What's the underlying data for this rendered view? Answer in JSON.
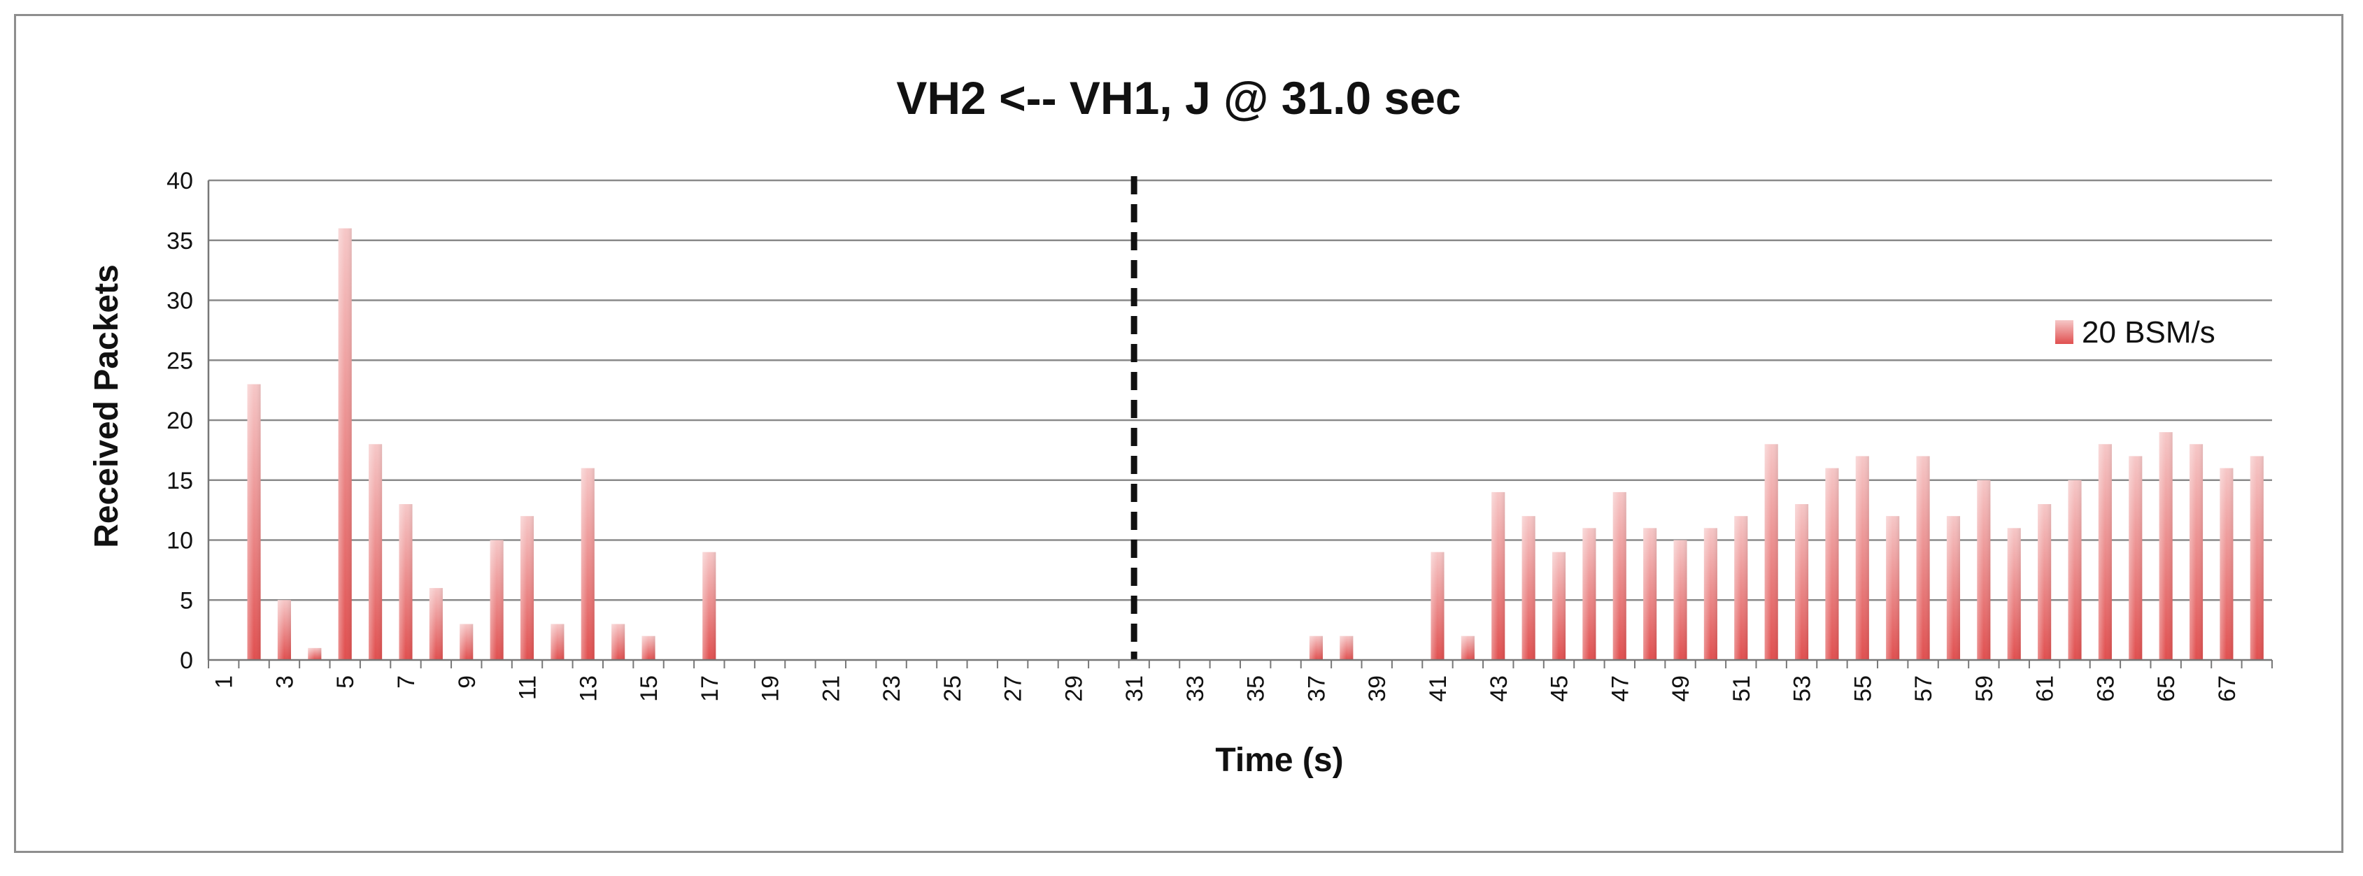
{
  "chart_data": {
    "type": "bar",
    "title": "VH2 <-- VH1, J @ 31.0 sec",
    "xlabel": "Time (s)",
    "ylabel": "Received Packets",
    "ylim": [
      0,
      40
    ],
    "yticks": [
      0,
      5,
      10,
      15,
      20,
      25,
      30,
      35,
      40
    ],
    "grid": true,
    "legend_position": "right",
    "categories": [
      1,
      2,
      3,
      4,
      5,
      6,
      7,
      8,
      9,
      10,
      11,
      12,
      13,
      14,
      15,
      16,
      17,
      18,
      19,
      20,
      21,
      22,
      23,
      24,
      25,
      26,
      27,
      28,
      29,
      30,
      31,
      32,
      33,
      34,
      35,
      36,
      37,
      38,
      39,
      40,
      41,
      42,
      43,
      44,
      45,
      46,
      47,
      48,
      49,
      50,
      51,
      52,
      53,
      54,
      55,
      56,
      57,
      58,
      59,
      60,
      61,
      62,
      63,
      64,
      65,
      66,
      67,
      68
    ],
    "x_tick_labels": [
      "1",
      "3",
      "5",
      "7",
      "9",
      "11",
      "13",
      "15",
      "17",
      "19",
      "21",
      "23",
      "25",
      "27",
      "29",
      "31",
      "33",
      "35",
      "37",
      "39",
      "41",
      "43",
      "45",
      "47",
      "49",
      "51",
      "53",
      "55",
      "57",
      "59",
      "61",
      "63",
      "65",
      "67"
    ],
    "series": [
      {
        "name": "20 BSM/s",
        "color": "#e25f5f",
        "values": [
          0,
          23,
          5,
          1,
          36,
          18,
          13,
          6,
          3,
          10,
          12,
          3,
          16,
          3,
          2,
          0,
          9,
          0,
          0,
          0,
          0,
          0,
          0,
          0,
          0,
          0,
          0,
          0,
          0,
          0,
          0,
          0,
          0,
          0,
          0,
          0,
          2,
          2,
          0,
          0,
          9,
          2,
          14,
          12,
          9,
          11,
          14,
          11,
          10,
          11,
          12,
          18,
          13,
          16,
          17,
          12,
          17,
          12,
          15,
          11,
          13,
          15,
          18,
          17,
          19,
          18,
          16,
          17
        ]
      }
    ],
    "annotations": [
      {
        "type": "vertical-dashed-line",
        "x": 31,
        "color": "#111111"
      }
    ]
  }
}
